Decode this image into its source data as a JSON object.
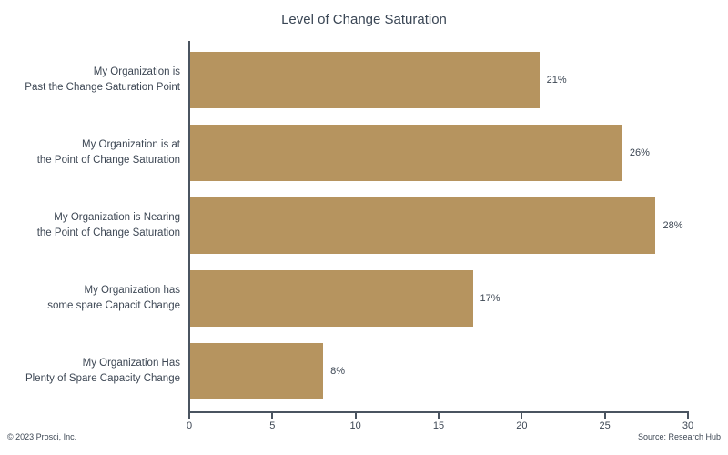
{
  "chart_data": {
    "type": "bar",
    "orientation": "horizontal",
    "title": "Level of Change Saturation",
    "categories": [
      "My Organization is\nPast the Change Saturation Point",
      "My Organization is at\nthe Point of Change Saturation",
      "My Organization is Nearing\nthe Point of Change Saturation",
      "My Organization has\nsome spare Capacit Change",
      "My Organization Has\nPlenty of Spare Capacity Change"
    ],
    "values": [
      21,
      26,
      28,
      17,
      8
    ],
    "value_labels": [
      "21%",
      "26%",
      "28%",
      "17%",
      "8%"
    ],
    "xlabel": "",
    "ylabel": "",
    "xlim": [
      0,
      30
    ],
    "x_ticks": [
      0,
      5,
      10,
      15,
      20,
      25,
      30
    ],
    "grid": false,
    "legend": false,
    "bar_color": "#b6945f",
    "axis_color": "#4a5460",
    "text_color": "#3d4754"
  },
  "footer": {
    "left": "© 2023 Prosci, Inc.",
    "right": "Source: Research Hub"
  }
}
